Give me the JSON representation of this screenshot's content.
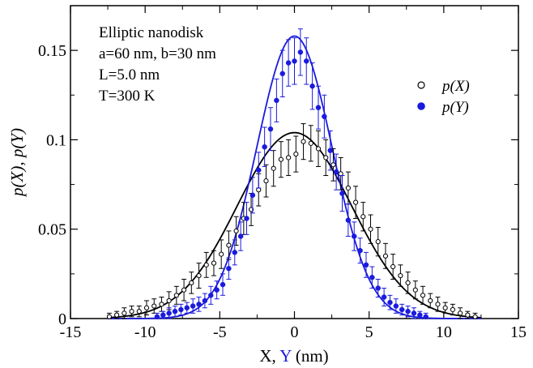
{
  "chart_data": {
    "type": "scatter",
    "xlabel_parts": [
      "X, ",
      "Y",
      " (nm)"
    ],
    "ylabel": "p(X),  p(Y)",
    "xlim": [
      -15,
      15
    ],
    "ylim": [
      0,
      0.175
    ],
    "xticks": [
      -15,
      -10,
      -5,
      0,
      5,
      10,
      15
    ],
    "yticks": [
      0,
      0.05,
      0.1,
      0.15
    ],
    "ytick_labels": [
      "0",
      "0.05",
      "0.1",
      "0.15"
    ],
    "annotations": [
      "Elliptic nanodisk",
      "a=60 nm, b=30 nm",
      "L=5.0 nm",
      "T=300 K"
    ],
    "legend": {
      "placement": "right",
      "entries": [
        "p(X)",
        "p(Y)"
      ]
    },
    "colors": {
      "x_series": "#000000",
      "y_series": "#1a1adf",
      "axis": "#000000"
    },
    "series": [
      {
        "name": "p(X)",
        "marker": "open-circle",
        "fit": {
          "amplitude": 0.104,
          "sigma": 3.83
        },
        "points": [
          [
            -12.4,
            0.001,
            0.002
          ],
          [
            -11.9,
            0.002,
            0.002
          ],
          [
            -11.4,
            0.003,
            0.003
          ],
          [
            -10.9,
            0.004,
            0.003
          ],
          [
            -10.4,
            0.004,
            0.003
          ],
          [
            -9.9,
            0.006,
            0.004
          ],
          [
            -9.4,
            0.007,
            0.004
          ],
          [
            -8.9,
            0.008,
            0.004
          ],
          [
            -8.4,
            0.01,
            0.005
          ],
          [
            -7.9,
            0.013,
            0.005
          ],
          [
            -7.4,
            0.016,
            0.006
          ],
          [
            -6.9,
            0.02,
            0.006
          ],
          [
            -6.4,
            0.024,
            0.007
          ],
          [
            -5.9,
            0.03,
            0.007
          ],
          [
            -5.4,
            0.031,
            0.007
          ],
          [
            -4.9,
            0.036,
            0.008
          ],
          [
            -4.4,
            0.041,
            0.008
          ],
          [
            -3.9,
            0.049,
            0.008
          ],
          [
            -3.4,
            0.056,
            0.009
          ],
          [
            -2.9,
            0.061,
            0.009
          ],
          [
            -2.4,
            0.072,
            0.009
          ],
          [
            -1.9,
            0.077,
            0.009
          ],
          [
            -1.4,
            0.084,
            0.01
          ],
          [
            -0.9,
            0.089,
            0.01
          ],
          [
            -0.4,
            0.09,
            0.01
          ],
          [
            0.1,
            0.092,
            0.01
          ],
          [
            0.6,
            0.099,
            0.01
          ],
          [
            1.1,
            0.098,
            0.01
          ],
          [
            1.6,
            0.095,
            0.01
          ],
          [
            2.1,
            0.09,
            0.01
          ],
          [
            2.6,
            0.086,
            0.009
          ],
          [
            3.1,
            0.081,
            0.009
          ],
          [
            3.6,
            0.073,
            0.009
          ],
          [
            4.1,
            0.065,
            0.009
          ],
          [
            4.6,
            0.057,
            0.008
          ],
          [
            5.1,
            0.05,
            0.008
          ],
          [
            5.6,
            0.043,
            0.008
          ],
          [
            6.1,
            0.035,
            0.007
          ],
          [
            6.6,
            0.029,
            0.007
          ],
          [
            7.1,
            0.024,
            0.006
          ],
          [
            7.6,
            0.02,
            0.006
          ],
          [
            8.1,
            0.016,
            0.005
          ],
          [
            8.6,
            0.013,
            0.005
          ],
          [
            9.1,
            0.01,
            0.004
          ],
          [
            9.6,
            0.008,
            0.004
          ],
          [
            10.1,
            0.006,
            0.003
          ],
          [
            10.6,
            0.005,
            0.003
          ],
          [
            11.1,
            0.003,
            0.003
          ],
          [
            11.6,
            0.002,
            0.002
          ],
          [
            12.1,
            0.001,
            0.002
          ]
        ]
      },
      {
        "name": "p(Y)",
        "marker": "filled-circle",
        "fit": {
          "amplitude": 0.158,
          "sigma": 2.52
        },
        "points": [
          [
            -9.2,
            0.001,
            0.002
          ],
          [
            -8.8,
            0.002,
            0.002
          ],
          [
            -8.4,
            0.003,
            0.003
          ],
          [
            -8.0,
            0.004,
            0.003
          ],
          [
            -7.6,
            0.005,
            0.003
          ],
          [
            -7.2,
            0.006,
            0.003
          ],
          [
            -6.8,
            0.007,
            0.004
          ],
          [
            -6.4,
            0.008,
            0.004
          ],
          [
            -6.0,
            0.01,
            0.004
          ],
          [
            -5.6,
            0.013,
            0.005
          ],
          [
            -5.2,
            0.016,
            0.005
          ],
          [
            -4.8,
            0.019,
            0.006
          ],
          [
            -4.4,
            0.028,
            0.006
          ],
          [
            -4.0,
            0.037,
            0.007
          ],
          [
            -3.6,
            0.046,
            0.008
          ],
          [
            -3.2,
            0.056,
            0.009
          ],
          [
            -2.8,
            0.069,
            0.01
          ],
          [
            -2.4,
            0.083,
            0.01
          ],
          [
            -2.0,
            0.096,
            0.011
          ],
          [
            -1.6,
            0.106,
            0.012
          ],
          [
            -1.2,
            0.122,
            0.012
          ],
          [
            -0.8,
            0.137,
            0.013
          ],
          [
            -0.4,
            0.143,
            0.013
          ],
          [
            0.0,
            0.144,
            0.013
          ],
          [
            0.4,
            0.149,
            0.013
          ],
          [
            0.8,
            0.144,
            0.013
          ],
          [
            1.2,
            0.13,
            0.013
          ],
          [
            1.6,
            0.118,
            0.012
          ],
          [
            2.0,
            0.113,
            0.012
          ],
          [
            2.4,
            0.094,
            0.011
          ],
          [
            2.8,
            0.082,
            0.01
          ],
          [
            3.2,
            0.07,
            0.01
          ],
          [
            3.6,
            0.055,
            0.009
          ],
          [
            4.0,
            0.046,
            0.008
          ],
          [
            4.4,
            0.038,
            0.007
          ],
          [
            4.8,
            0.03,
            0.007
          ],
          [
            5.2,
            0.023,
            0.006
          ],
          [
            5.6,
            0.017,
            0.005
          ],
          [
            6.0,
            0.012,
            0.005
          ],
          [
            6.4,
            0.009,
            0.004
          ],
          [
            6.8,
            0.007,
            0.004
          ],
          [
            7.2,
            0.005,
            0.003
          ],
          [
            7.6,
            0.004,
            0.003
          ],
          [
            8.0,
            0.003,
            0.003
          ],
          [
            8.4,
            0.002,
            0.002
          ],
          [
            8.8,
            0.001,
            0.002
          ]
        ]
      }
    ]
  }
}
